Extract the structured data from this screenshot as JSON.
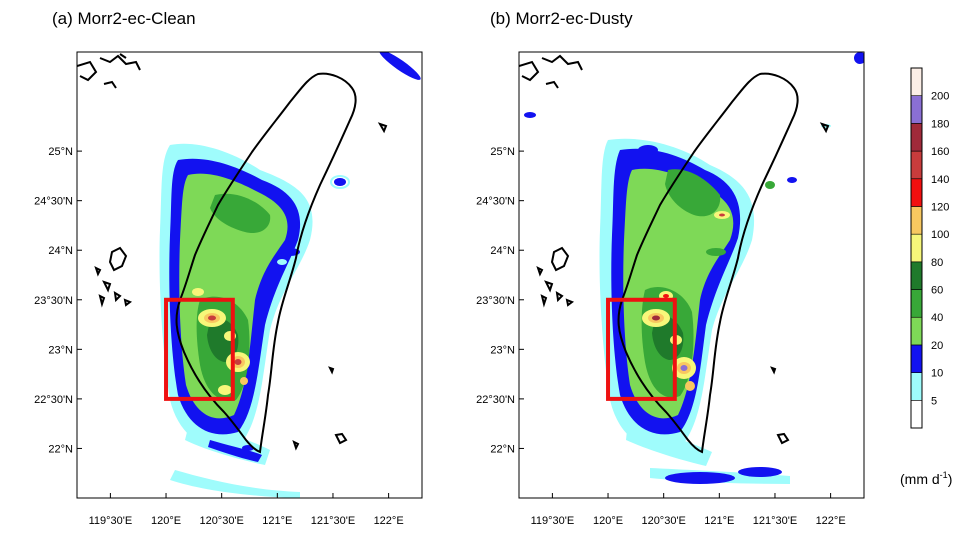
{
  "panels": [
    {
      "id": "a",
      "title": "(a)  Morr2-ec-Clean"
    },
    {
      "id": "b",
      "title": "(b)  Morr2-ec-Dusty"
    }
  ],
  "axes": {
    "lat_ticks": [
      {
        "value": 25.0,
        "label": "25°N"
      },
      {
        "value": 24.5,
        "label": "24°30'N"
      },
      {
        "value": 24.0,
        "label": "24°N"
      },
      {
        "value": 23.5,
        "label": "23°30'N"
      },
      {
        "value": 23.0,
        "label": "23°N"
      },
      {
        "value": 22.5,
        "label": "22°30'N"
      },
      {
        "value": 22.0,
        "label": "22°N"
      }
    ],
    "lon_ticks": [
      {
        "value": 119.5,
        "label": "119°30'E"
      },
      {
        "value": 120.0,
        "label": "120°E"
      },
      {
        "value": 120.5,
        "label": "120°30'E"
      },
      {
        "value": 121.0,
        "label": "121°E"
      },
      {
        "value": 121.5,
        "label": "121°30'E"
      },
      {
        "value": 122.0,
        "label": "122°E"
      }
    ],
    "lon_range": [
      119.2,
      122.3
    ],
    "lat_range": [
      21.5,
      26.0
    ]
  },
  "analysis_box": {
    "lon": [
      120.0,
      120.6
    ],
    "lat": [
      22.5,
      23.5
    ],
    "color": "#ee1111"
  },
  "colorbar": {
    "levels": [
      {
        "label": "5",
        "color": "#ffffff"
      },
      {
        "label": "10",
        "color": "#9ffcfc"
      },
      {
        "label": "20",
        "color": "#1212f0"
      },
      {
        "label": "40",
        "color": "#7ed957"
      },
      {
        "label": "60",
        "color": "#38a838"
      },
      {
        "label": "80",
        "color": "#1f7a2b"
      },
      {
        "label": "100",
        "color": "#f7f77a"
      },
      {
        "label": "120",
        "color": "#f8c860"
      },
      {
        "label": "140",
        "color": "#f21010"
      },
      {
        "label": "160",
        "color": "#c83c3c"
      },
      {
        "label": "180",
        "color": "#a02a3a"
      },
      {
        "label": "200",
        "color": "#8a6fd4"
      }
    ],
    "top_color": "#fbeee6",
    "units_main": "(mm d",
    "units_exp": "-1",
    "units_close": ")"
  },
  "colors": {
    "coast": "#000000",
    "frame": "#000000"
  }
}
